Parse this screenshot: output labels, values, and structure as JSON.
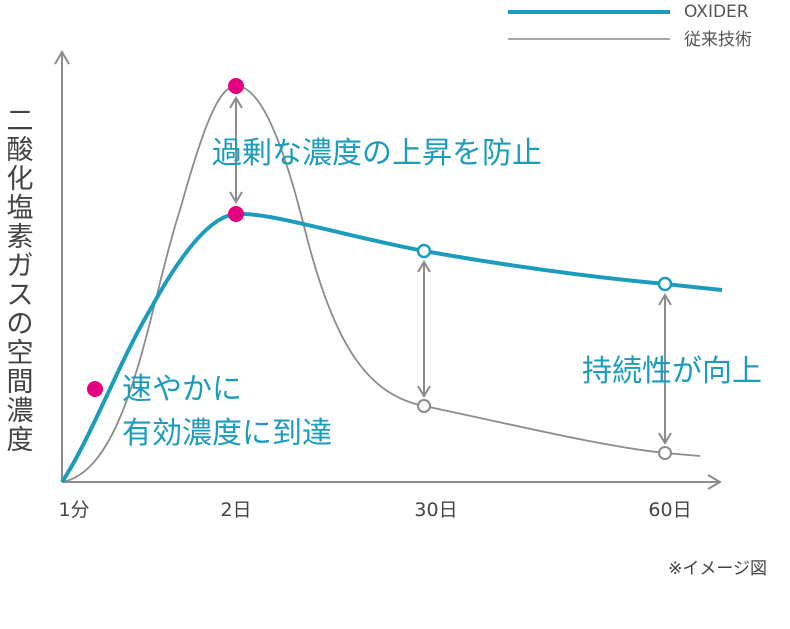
{
  "chart_data": {
    "type": "line",
    "categories": [
      "1分",
      "2日",
      "30日",
      "60日"
    ],
    "ylabel": "二酸化塩素ガスの空間濃度",
    "legend": {
      "position": "top-right"
    },
    "series": [
      {
        "name": "OXIDER",
        "color": "#1c9cbc",
        "points": [
          {
            "x": "1分",
            "y": 0
          },
          {
            "x": "2日",
            "y": 68
          },
          {
            "x": "30日",
            "y": 58
          },
          {
            "x": "60日",
            "y": 49
          }
        ]
      },
      {
        "name": "従来技術",
        "color": "#8c8c8c",
        "points": [
          {
            "x": "1分",
            "y": 0
          },
          {
            "x": "2日",
            "y": 100
          },
          {
            "x": "30日",
            "y": 19
          },
          {
            "x": "60日",
            "y": 7
          }
        ]
      }
    ],
    "annotations": [
      "過剰な濃度の上昇を防止",
      "速やかに",
      "有効濃度に到達",
      "持続性が向上"
    ],
    "note": "※イメージ図",
    "colors": {
      "accent": "#1c9cbc",
      "highlight": "#e5007f",
      "axis": "#8c8c8c"
    }
  }
}
